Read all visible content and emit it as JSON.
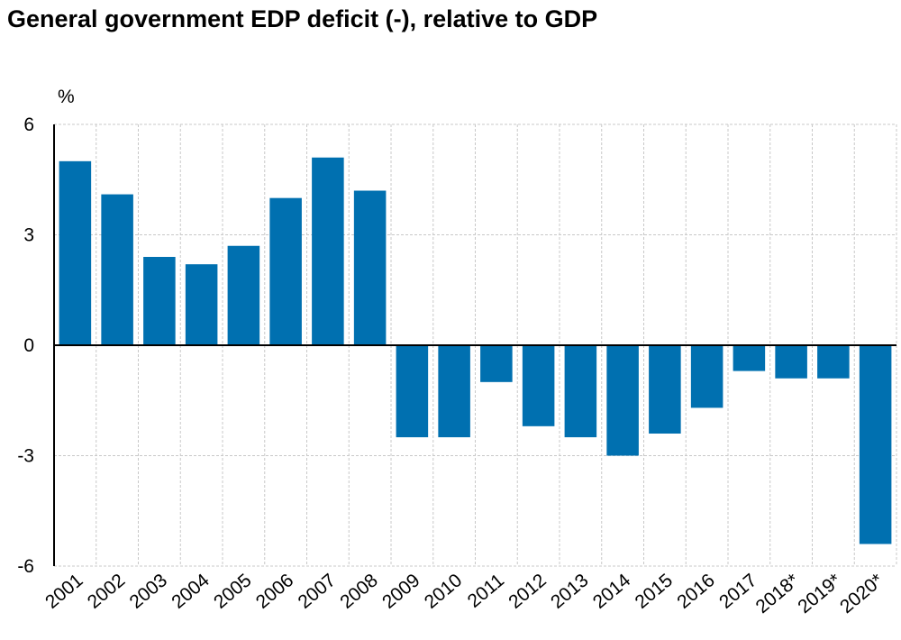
{
  "chart_data": {
    "type": "bar",
    "title": "General government EDP deficit (-), relative to GDP",
    "ylabel": "%",
    "xlabel": "",
    "ylim": [
      -6,
      6
    ],
    "yticks": [
      6,
      3,
      0,
      -3,
      -6
    ],
    "grid": true,
    "bar_color": "#0070B0",
    "categories": [
      "2001",
      "2002",
      "2003",
      "2004",
      "2005",
      "2006",
      "2007",
      "2008",
      "2009",
      "2010",
      "2011",
      "2012",
      "2013",
      "2014",
      "2015",
      "2016",
      "2017",
      "2018*",
      "2019*",
      "2020*"
    ],
    "values": [
      5.0,
      4.1,
      2.4,
      2.2,
      2.7,
      4.0,
      5.1,
      4.2,
      -2.5,
      -2.5,
      -1.0,
      -2.2,
      -2.5,
      -3.0,
      -2.4,
      -1.7,
      -0.7,
      -0.9,
      -0.9,
      -5.4
    ]
  }
}
